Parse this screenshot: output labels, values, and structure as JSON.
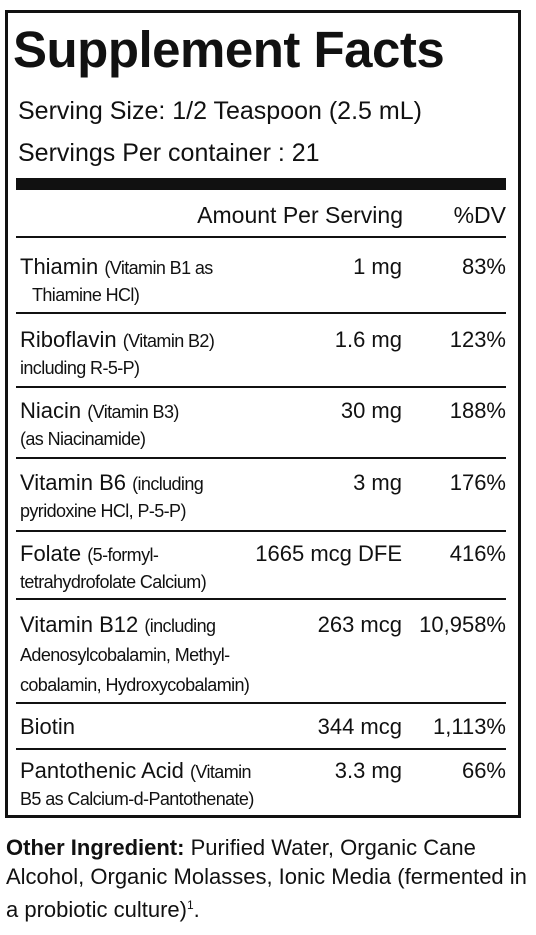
{
  "title": "Supplement Facts",
  "serving_size": "Serving Size: 1/2 Teaspoon (2.5 mL)",
  "servings_per_container": "Servings Per container : 21",
  "header": {
    "amount": "Amount Per Serving",
    "dv": "%DV"
  },
  "nutrients": [
    {
      "name": "Thiamin",
      "detail1": "(Vitamin B1 as",
      "detail2": "Thiamine HCl)",
      "amount": "1 mg",
      "dv": "83%"
    },
    {
      "name": "Riboflavin",
      "detail1": "(Vitamin B2)",
      "detail2": "including R-5-P)",
      "amount": "1.6 mg",
      "dv": "123%"
    },
    {
      "name": "Niacin",
      "detail1": "(Vitamin B3)",
      "detail2": "(as Niacinamide)",
      "amount": "30 mg",
      "dv": "188%"
    },
    {
      "name": "Vitamin B6",
      "detail1": "(including",
      "detail2": "pyridoxine HCl, P-5-P)",
      "amount": "3 mg",
      "dv": "176%"
    },
    {
      "name": "Folate",
      "detail1": "(5-formyl-",
      "detail2": "tetrahydrofolate Calcium)",
      "amount": "1665 mcg DFE",
      "dv": "416%"
    },
    {
      "name": "Vitamin B12",
      "detail1": "(including",
      "detail2": "Adenosylcobalamin, Methyl-",
      "detail3": "cobalamin, Hydroxycobalamin)",
      "amount": "263 mcg",
      "dv": "10,958%"
    },
    {
      "name": "Biotin",
      "amount": "344 mcg",
      "dv": "1,113%"
    },
    {
      "name": "Pantothenic Acid",
      "detail1": "(Vitamin",
      "detail2": "B5 as Calcium-d-Pantothenate)",
      "amount": "3.3 mg",
      "dv": "66%"
    }
  ],
  "other_ingredient": {
    "label": "Other Ingredient:",
    "text": " Purified Water, Organic Cane Alcohol, Organic Molasses, Ionic Media (fermented in a probiotic culture)",
    "superscript": "1",
    "end": "."
  }
}
